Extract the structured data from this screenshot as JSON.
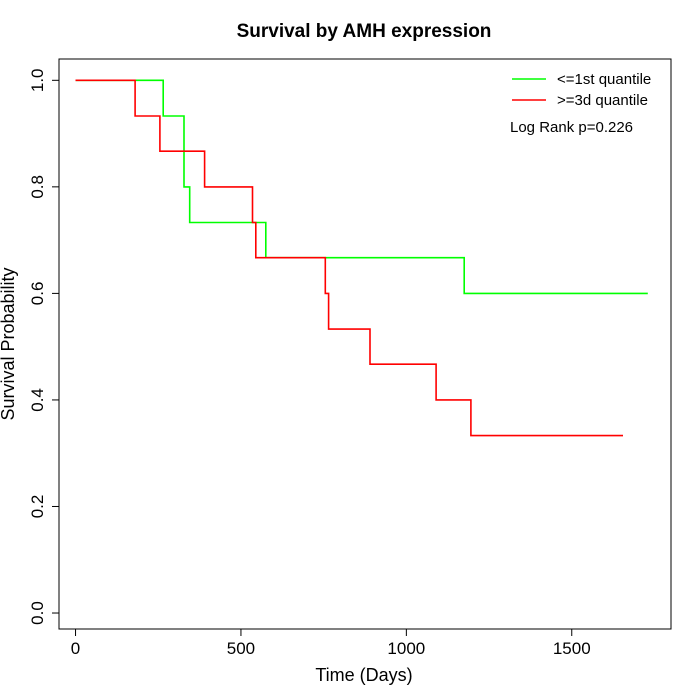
{
  "chart_data": {
    "type": "line",
    "title": "Survival by AMH expression",
    "xlabel": "Time (Days)",
    "ylabel": "Survival Probability",
    "xlim": [
      -50,
      1800
    ],
    "ylim": [
      -0.03,
      1.04
    ],
    "x_ticks": [
      0,
      500,
      1000,
      1500
    ],
    "y_ticks": [
      0.0,
      0.2,
      0.4,
      0.6,
      0.8,
      1.0
    ],
    "x_tick_labels": [
      "0",
      "500",
      "1000",
      "1500"
    ],
    "y_tick_labels": [
      "0.0",
      "0.2",
      "0.4",
      "0.6",
      "0.8",
      "1.0"
    ],
    "legend_position": "top-right",
    "annotation": "Log Rank p=0.226",
    "series": [
      {
        "name": "<=1st quantile",
        "color": "#00ff00",
        "x": [
          0,
          265,
          265,
          328,
          328,
          345,
          345,
          575,
          575,
          1175,
          1175,
          1730
        ],
        "y": [
          1.0,
          1.0,
          0.933,
          0.933,
          0.8,
          0.8,
          0.733,
          0.733,
          0.667,
          0.667,
          0.6,
          0.6
        ]
      },
      {
        "name": ">=3d quantile",
        "color": "#ff0000",
        "x": [
          0,
          180,
          180,
          255,
          255,
          390,
          390,
          535,
          535,
          545,
          545,
          755,
          755,
          765,
          765,
          890,
          890,
          1090,
          1090,
          1195,
          1195,
          1655
        ],
        "y": [
          1.0,
          1.0,
          0.933,
          0.933,
          0.867,
          0.867,
          0.8,
          0.8,
          0.733,
          0.733,
          0.667,
          0.667,
          0.6,
          0.6,
          0.533,
          0.533,
          0.467,
          0.467,
          0.4,
          0.4,
          0.333,
          0.333
        ]
      }
    ]
  }
}
